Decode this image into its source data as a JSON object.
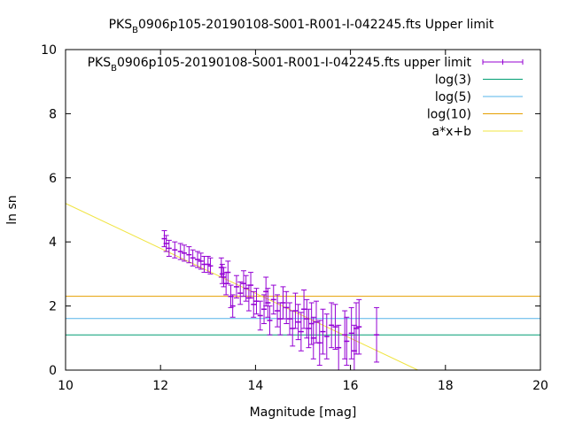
{
  "chart_data": {
    "type": "scatter",
    "title": {
      "prefix": "PKS",
      "subscript": "B",
      "rest": "0906p105-20190108-S001-R001-I-042245.fts Upper limit"
    },
    "xlabel": "Magnitude [mag]",
    "ylabel": "ln sn",
    "xlim": [
      10,
      20
    ],
    "ylim": [
      0,
      10
    ],
    "xticks": [
      "10",
      "12",
      "14",
      "16",
      "18",
      "20"
    ],
    "yticks": [
      "0",
      "2",
      "4",
      "6",
      "8",
      "10"
    ],
    "grid": false,
    "legend_position": "top-right",
    "legend": [
      {
        "prefix": "PKS",
        "subscript": "B",
        "rest": "0906p105-20190108-S001-R001-I-042245.fts upper limit",
        "color": "#9400d3"
      },
      {
        "text": "log(3)",
        "color": "#009e73"
      },
      {
        "text": "log(5)",
        "color": "#56b4e9"
      },
      {
        "text": "log(10)",
        "color": "#e69f00"
      },
      {
        "text": "a*x+b",
        "color": "#f0e442"
      }
    ],
    "hlines": [
      {
        "y": 1.0986,
        "color": "#009e73"
      },
      {
        "y": 1.6094,
        "color": "#56b4e9"
      },
      {
        "y": 2.3026,
        "color": "#e69f00"
      }
    ],
    "fit_line": {
      "x": [
        10,
        17.42
      ],
      "y": [
        5.2,
        0
      ],
      "color": "#f0e442"
    },
    "series": [
      {
        "color": "#9400d3",
        "points": [
          [
            12.08,
            4.1,
            0.25
          ],
          [
            12.12,
            3.95,
            0.25
          ],
          [
            12.18,
            3.8,
            0.25
          ],
          [
            12.3,
            3.75,
            0.25
          ],
          [
            12.42,
            3.7,
            0.25
          ],
          [
            12.5,
            3.65,
            0.25
          ],
          [
            12.6,
            3.6,
            0.25
          ],
          [
            12.68,
            3.5,
            0.25
          ],
          [
            12.78,
            3.45,
            0.25
          ],
          [
            12.85,
            3.4,
            0.25
          ],
          [
            12.92,
            3.3,
            0.25
          ],
          [
            13.0,
            3.3,
            0.25
          ],
          [
            13.05,
            3.25,
            0.25
          ],
          [
            13.28,
            3.2,
            0.3
          ],
          [
            13.3,
            3.0,
            0.3
          ],
          [
            13.33,
            2.9,
            0.3
          ],
          [
            13.38,
            2.7,
            0.35
          ],
          [
            13.42,
            3.05,
            0.35
          ],
          [
            13.48,
            2.3,
            0.35
          ],
          [
            13.52,
            2.0,
            0.35
          ],
          [
            13.6,
            2.6,
            0.35
          ],
          [
            13.68,
            2.4,
            0.35
          ],
          [
            13.75,
            2.7,
            0.4
          ],
          [
            13.8,
            2.55,
            0.4
          ],
          [
            13.86,
            2.25,
            0.4
          ],
          [
            13.9,
            2.65,
            0.4
          ],
          [
            13.96,
            2.05,
            0.4
          ],
          [
            14.02,
            2.15,
            0.4
          ],
          [
            14.1,
            1.7,
            0.45
          ],
          [
            14.18,
            1.9,
            0.45
          ],
          [
            14.22,
            2.45,
            0.45
          ],
          [
            14.26,
            2.1,
            0.45
          ],
          [
            14.3,
            1.55,
            0.45
          ],
          [
            14.38,
            2.2,
            0.45
          ],
          [
            14.46,
            1.85,
            0.5
          ],
          [
            14.52,
            1.6,
            0.5
          ],
          [
            14.58,
            2.1,
            0.5
          ],
          [
            14.65,
            1.95,
            0.5
          ],
          [
            14.72,
            1.6,
            0.5
          ],
          [
            14.78,
            1.3,
            0.55
          ],
          [
            14.84,
            1.85,
            0.55
          ],
          [
            14.9,
            1.5,
            0.55
          ],
          [
            14.96,
            1.2,
            0.6
          ],
          [
            15.02,
            1.9,
            0.6
          ],
          [
            15.08,
            1.6,
            0.6
          ],
          [
            15.12,
            1.3,
            0.6
          ],
          [
            15.18,
            1.45,
            0.65
          ],
          [
            15.22,
            1.0,
            0.65
          ],
          [
            15.28,
            1.5,
            0.65
          ],
          [
            15.35,
            0.85,
            0.7
          ],
          [
            15.42,
            1.2,
            0.7
          ],
          [
            15.5,
            1.05,
            0.7
          ],
          [
            15.6,
            1.4,
            0.7
          ],
          [
            15.68,
            1.35,
            0.7
          ],
          [
            15.75,
            0.7,
            0.7
          ],
          [
            15.88,
            1.1,
            0.75
          ],
          [
            15.92,
            0.9,
            0.75
          ],
          [
            16.02,
            1.15,
            0.8
          ],
          [
            16.08,
            0.6,
            0.8
          ],
          [
            16.12,
            1.3,
            0.8
          ],
          [
            16.18,
            1.35,
            0.85
          ],
          [
            16.55,
            1.1,
            0.85
          ]
        ]
      }
    ]
  }
}
